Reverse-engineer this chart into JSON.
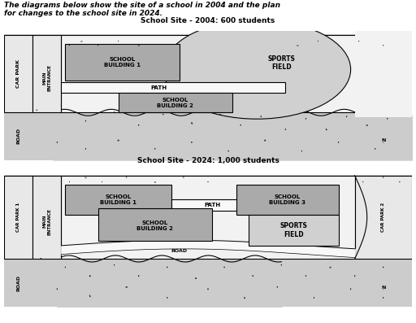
{
  "title_text": "The diagrams below show the site of a school in 2004 and the plan\nfor changes to the school site in 2024.",
  "diagram1_title": "School Site - 2004: 600 students",
  "diagram2_title": "School Site - 2024: 1,000 students",
  "bg_color": "#ffffff",
  "map_bg": "#e0e0e0",
  "forest_bg": "#cccccc",
  "school_bg": "#f2f2f2",
  "building_color": "#aaaaaa",
  "sports_color": "#d0d0d0",
  "path_color": "#f8f8f8",
  "strip_color": "#e8e8e8"
}
